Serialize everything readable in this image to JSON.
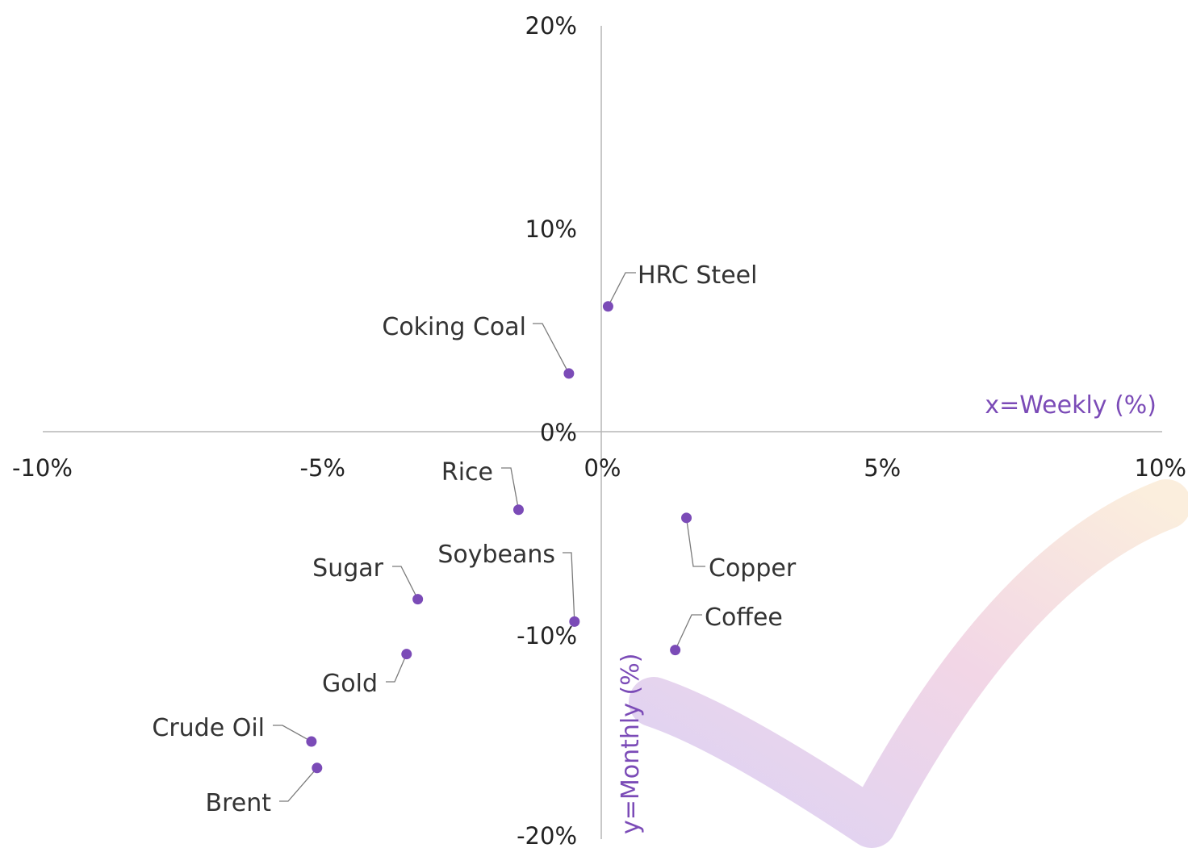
{
  "colors": {
    "point": "#7b4bb7",
    "axis_title": "#7b4bb7",
    "axis_line": "#b5b5b5",
    "check_start": "#dcd2f4",
    "check_mid": "#f2d6e6",
    "check_end": "#fbeedd"
  },
  "chart_data": {
    "type": "scatter",
    "xlabel": "x=Weekly (%)",
    "ylabel": "y=Monthly (%)",
    "xlim": [
      -10,
      10
    ],
    "ylim": [
      -20,
      20
    ],
    "x_ticks": [
      {
        "value": -10,
        "label": "-10%"
      },
      {
        "value": -5,
        "label": "-5%"
      },
      {
        "value": 0,
        "label": "0%"
      },
      {
        "value": 5,
        "label": "5%"
      },
      {
        "value": 10,
        "label": "10%"
      }
    ],
    "y_ticks": [
      {
        "value": 20,
        "label": "20%"
      },
      {
        "value": 10,
        "label": "10%"
      },
      {
        "value": 0,
        "label": "0%"
      },
      {
        "value": -10,
        "label": "-10%"
      },
      {
        "value": -20,
        "label": "-20%"
      }
    ],
    "grid": false,
    "points": [
      {
        "name": "HRC Steel",
        "x": 0.1,
        "y": 6.2
      },
      {
        "name": "Coking Coal",
        "x": -0.6,
        "y": 2.9
      },
      {
        "name": "Rice",
        "x": -1.5,
        "y": -3.8
      },
      {
        "name": "Copper",
        "x": 1.5,
        "y": -4.2
      },
      {
        "name": "Soybeans",
        "x": -0.5,
        "y": -9.3
      },
      {
        "name": "Sugar",
        "x": -3.3,
        "y": -8.2
      },
      {
        "name": "Coffee",
        "x": 1.3,
        "y": -10.7
      },
      {
        "name": "Gold",
        "x": -3.5,
        "y": -10.9
      },
      {
        "name": "Crude Oil",
        "x": -5.2,
        "y": -15.2
      },
      {
        "name": "Brent",
        "x": -5.1,
        "y": -16.5
      }
    ]
  }
}
